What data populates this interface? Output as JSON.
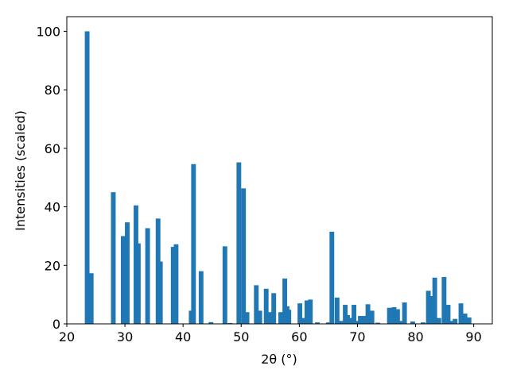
{
  "chart_data": {
    "type": "bar",
    "xlabel": "2θ (°)",
    "ylabel": "Intensities (scaled)",
    "color": "#1f77b4",
    "x": [
      23.5,
      24.2,
      28.0,
      29.7,
      30.4,
      31.9,
      32.3,
      33.9,
      35.7,
      36.1,
      38.3,
      38.8,
      41.4,
      41.8,
      43.1,
      44.8,
      47.2,
      48.1,
      49.6,
      50.4,
      51.0,
      52.6,
      53.2,
      54.3,
      54.9,
      55.6,
      56.8,
      57.5,
      57.9,
      58.2,
      60.1,
      60.8,
      61.3,
      61.9,
      63.1,
      65.0,
      65.6,
      66.5,
      67.2,
      67.9,
      68.3,
      68.7,
      69.4,
      69.9,
      70.5,
      71.2,
      71.8,
      72.5,
      73.5,
      75.5,
      76.3,
      76.9,
      77.4,
      78.1,
      79.5,
      81.3,
      82.2,
      82.6,
      83.3,
      84.0,
      84.9,
      85.6,
      86.2,
      86.8,
      87.8,
      88.5,
      89.2
    ],
    "values": [
      100,
      17.3,
      45,
      30,
      34.7,
      40.5,
      27.5,
      32.7,
      36,
      21.3,
      26.3,
      27.2,
      4.5,
      54.6,
      18,
      0.6,
      26.5,
      0.3,
      55.2,
      46.3,
      4,
      13.2,
      4.5,
      12,
      4,
      10.5,
      4,
      15.5,
      6,
      4.8,
      7,
      2,
      8,
      8.3,
      0.5,
      0.5,
      31.5,
      9,
      1,
      6.5,
      3,
      2,
      6.5,
      1,
      2.7,
      2.7,
      6.7,
      4.5,
      0.4,
      5.5,
      5.7,
      5,
      1,
      7.3,
      0.8,
      0.5,
      11.3,
      9.5,
      15.8,
      2,
      16,
      6.5,
      1,
      1.7,
      7,
      3.5,
      2.2
    ],
    "xlim": [
      20,
      93.2
    ],
    "xticks": [
      20,
      30,
      40,
      50,
      60,
      70,
      80,
      90
    ],
    "ylim": [
      0,
      105
    ],
    "yticks": [
      0,
      20,
      40,
      60,
      80,
      100
    ]
  }
}
